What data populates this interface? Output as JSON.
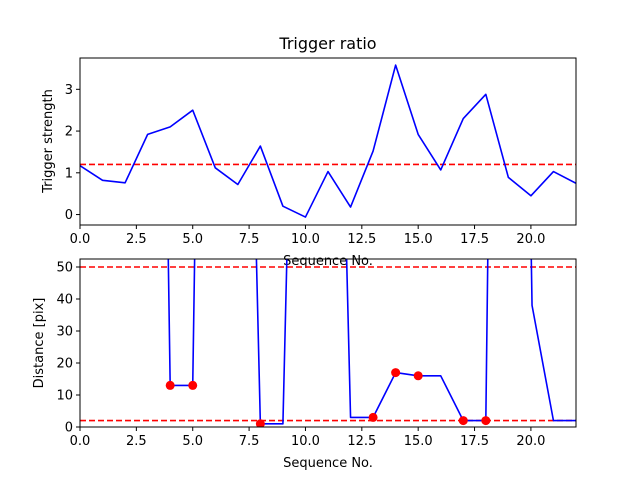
{
  "chart_data": [
    {
      "type": "line",
      "title": "Trigger ratio",
      "xlabel": "Sequence No.",
      "ylabel": "Trigger strength",
      "xlim": [
        0,
        22
      ],
      "ylim": [
        -0.25,
        3.75
      ],
      "xticks": [
        0,
        2.5,
        5,
        7.5,
        10,
        12.5,
        15,
        17.5,
        20
      ],
      "xtick_labels": [
        "0.0",
        "2.5",
        "5.0",
        "7.5",
        "10.0",
        "12.5",
        "15.0",
        "17.5",
        "20.0"
      ],
      "yticks": [
        0,
        1,
        2,
        3
      ],
      "ytick_labels": [
        "0",
        "1",
        "2",
        "3"
      ],
      "grid": false,
      "series": [
        {
          "color": "#0000ff",
          "style": "solid",
          "x": [
            0,
            1,
            2,
            3,
            4,
            5,
            6,
            7,
            8,
            9,
            10,
            11,
            12,
            13,
            14,
            15,
            16,
            17,
            18,
            19,
            20,
            21,
            22
          ],
          "y": [
            1.17,
            0.82,
            0.76,
            1.92,
            2.1,
            2.5,
            1.12,
            0.72,
            1.64,
            0.2,
            -0.06,
            1.03,
            0.18,
            1.52,
            3.58,
            1.92,
            1.07,
            2.3,
            2.88,
            0.89,
            0.45,
            1.03,
            0.75
          ]
        }
      ],
      "hlines": [
        {
          "y": 1.2,
          "color": "#ff0000",
          "style": "dashed"
        }
      ]
    },
    {
      "type": "line",
      "title": "",
      "xlabel": "Sequence No.",
      "ylabel": "Distance [pix]",
      "xlim": [
        0,
        22
      ],
      "ylim": [
        0,
        52.5
      ],
      "xticks": [
        0,
        2.5,
        5,
        7.5,
        10,
        12.5,
        15,
        17.5,
        20
      ],
      "xtick_labels": [
        "0.0",
        "2.5",
        "5.0",
        "7.5",
        "10.0",
        "12.5",
        "15.0",
        "17.5",
        "20.0"
      ],
      "yticks": [
        0,
        10,
        20,
        30,
        40,
        50
      ],
      "ytick_labels": [
        "0",
        "10",
        "20",
        "30",
        "40",
        "50"
      ],
      "grid": false,
      "series": [
        {
          "color": "#0000ff",
          "style": "solid",
          "x": [
            3.9,
            4,
            5,
            5.1,
            7.8,
            8,
            9,
            9.2,
            11.8,
            12,
            13,
            14,
            15,
            16,
            17,
            18,
            18.1,
            20,
            20.05,
            21,
            22
          ],
          "y": [
            60,
            13,
            13,
            60,
            60,
            1,
            1,
            60,
            60,
            3,
            3,
            17,
            16,
            16,
            2,
            2,
            60,
            60,
            38,
            2,
            2
          ]
        }
      ],
      "points": {
        "color": "#ff0000",
        "x": [
          4,
          5,
          8,
          13,
          14,
          15,
          17,
          18
        ],
        "y": [
          13,
          13,
          1,
          3,
          17,
          16,
          2,
          2
        ]
      },
      "hlines": [
        {
          "y": 50,
          "color": "#ff0000",
          "style": "dashed"
        },
        {
          "y": 2,
          "color": "#ff0000",
          "style": "dashed"
        }
      ]
    }
  ]
}
